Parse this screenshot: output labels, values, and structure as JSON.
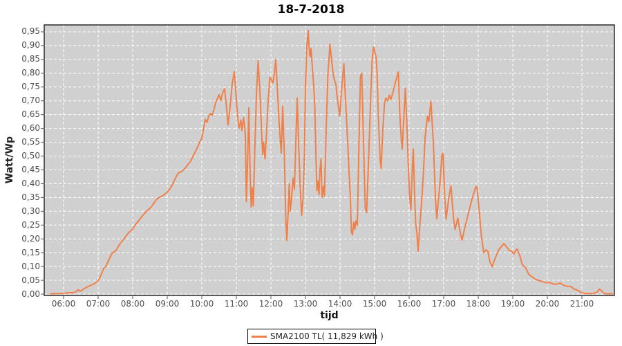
{
  "page": {
    "background": "#ffffff"
  },
  "chart_data": {
    "type": "line",
    "title": "18-7-2018",
    "xlabel": "tijd",
    "ylabel": "Watt/Wp",
    "x_unit": "time-of-day-hours",
    "xlim": [
      5.44,
      21.94
    ],
    "ylim": [
      -0.005,
      0.975
    ],
    "grid": true,
    "grid_style": "dashed-white",
    "legend_position": "bottom-center",
    "plot_background": "#d0d0d0",
    "grid_color": "#ffffff",
    "plot_border_color": "#2a2a2a",
    "tick_color": "#555555",
    "tick_label_color": "#4d4d4d",
    "x_tick_values": [
      6,
      7,
      8,
      9,
      10,
      11,
      12,
      13,
      14,
      15,
      16,
      17,
      18,
      19,
      20,
      21
    ],
    "x_tick_labels": [
      "06:00",
      "07:00",
      "08:00",
      "09:00",
      "10:00",
      "11:00",
      "12:00",
      "13:00",
      "14:00",
      "15:00",
      "16:00",
      "17:00",
      "18:00",
      "19:00",
      "20:00",
      "21:00"
    ],
    "y_tick_values": [
      0,
      0.05,
      0.1,
      0.15,
      0.2,
      0.25,
      0.3,
      0.35,
      0.4,
      0.45,
      0.5,
      0.55,
      0.6,
      0.65,
      0.7,
      0.75,
      0.8,
      0.85,
      0.9,
      0.95
    ],
    "y_tick_labels": [
      "0,00",
      "0,05",
      "0,10",
      "0,15",
      "0,20",
      "0,25",
      "0,30",
      "0,35",
      "0,40",
      "0,45",
      "0,50",
      "0,55",
      "0,60",
      "0,65",
      "0,70",
      "0,75",
      "0,80",
      "0,85",
      "0,90",
      "0,95"
    ],
    "series": [
      {
        "name": "SMA2100 TL( 11,829 kWh )",
        "color": "#f0804a",
        "points": [
          [
            5.62,
            0.001
          ],
          [
            5.75,
            0.002
          ],
          [
            5.9,
            0.002
          ],
          [
            6.0,
            0.003
          ],
          [
            6.1,
            0.004
          ],
          [
            6.2,
            0.005
          ],
          [
            6.28,
            0.005
          ],
          [
            6.35,
            0.008
          ],
          [
            6.42,
            0.016
          ],
          [
            6.47,
            0.01
          ],
          [
            6.53,
            0.014
          ],
          [
            6.6,
            0.02
          ],
          [
            6.67,
            0.025
          ],
          [
            6.75,
            0.03
          ],
          [
            6.83,
            0.034
          ],
          [
            6.92,
            0.04
          ],
          [
            7.0,
            0.048
          ],
          [
            7.05,
            0.06
          ],
          [
            7.1,
            0.075
          ],
          [
            7.17,
            0.095
          ],
          [
            7.22,
            0.1
          ],
          [
            7.28,
            0.115
          ],
          [
            7.33,
            0.13
          ],
          [
            7.4,
            0.148
          ],
          [
            7.45,
            0.152
          ],
          [
            7.5,
            0.156
          ],
          [
            7.55,
            0.165
          ],
          [
            7.62,
            0.18
          ],
          [
            7.68,
            0.19
          ],
          [
            7.75,
            0.2
          ],
          [
            7.82,
            0.213
          ],
          [
            7.88,
            0.222
          ],
          [
            7.95,
            0.23
          ],
          [
            8.0,
            0.235
          ],
          [
            8.07,
            0.25
          ],
          [
            8.13,
            0.26
          ],
          [
            8.2,
            0.27
          ],
          [
            8.27,
            0.282
          ],
          [
            8.33,
            0.29
          ],
          [
            8.4,
            0.3
          ],
          [
            8.47,
            0.308
          ],
          [
            8.53,
            0.315
          ],
          [
            8.6,
            0.327
          ],
          [
            8.67,
            0.34
          ],
          [
            8.73,
            0.348
          ],
          [
            8.8,
            0.352
          ],
          [
            8.87,
            0.357
          ],
          [
            8.93,
            0.362
          ],
          [
            9.0,
            0.37
          ],
          [
            9.07,
            0.38
          ],
          [
            9.13,
            0.392
          ],
          [
            9.2,
            0.41
          ],
          [
            9.27,
            0.428
          ],
          [
            9.33,
            0.44
          ],
          [
            9.4,
            0.443
          ],
          [
            9.47,
            0.45
          ],
          [
            9.53,
            0.458
          ],
          [
            9.6,
            0.47
          ],
          [
            9.67,
            0.48
          ],
          [
            9.73,
            0.495
          ],
          [
            9.8,
            0.513
          ],
          [
            9.87,
            0.53
          ],
          [
            9.93,
            0.548
          ],
          [
            10.0,
            0.565
          ],
          [
            10.05,
            0.598
          ],
          [
            10.1,
            0.633
          ],
          [
            10.15,
            0.622
          ],
          [
            10.2,
            0.645
          ],
          [
            10.25,
            0.654
          ],
          [
            10.3,
            0.648
          ],
          [
            10.35,
            0.668
          ],
          [
            10.4,
            0.693
          ],
          [
            10.45,
            0.708
          ],
          [
            10.5,
            0.722
          ],
          [
            10.55,
            0.701
          ],
          [
            10.6,
            0.728
          ],
          [
            10.66,
            0.744
          ],
          [
            10.71,
            0.683
          ],
          [
            10.76,
            0.612
          ],
          [
            10.82,
            0.68
          ],
          [
            10.88,
            0.762
          ],
          [
            10.94,
            0.805
          ],
          [
            11.0,
            0.705
          ],
          [
            11.05,
            0.625
          ],
          [
            11.08,
            0.6
          ],
          [
            11.13,
            0.63
          ],
          [
            11.16,
            0.592
          ],
          [
            11.21,
            0.64
          ],
          [
            11.26,
            0.578
          ],
          [
            11.29,
            0.335
          ],
          [
            11.33,
            0.5
          ],
          [
            11.36,
            0.675
          ],
          [
            11.4,
            0.43
          ],
          [
            11.43,
            0.315
          ],
          [
            11.46,
            0.385
          ],
          [
            11.49,
            0.32
          ],
          [
            11.54,
            0.55
          ],
          [
            11.58,
            0.72
          ],
          [
            11.63,
            0.845
          ],
          [
            11.68,
            0.74
          ],
          [
            11.72,
            0.62
          ],
          [
            11.76,
            0.505
          ],
          [
            11.79,
            0.55
          ],
          [
            11.83,
            0.49
          ],
          [
            11.88,
            0.6
          ],
          [
            11.92,
            0.7
          ],
          [
            11.97,
            0.785
          ],
          [
            12.02,
            0.775
          ],
          [
            12.06,
            0.765
          ],
          [
            12.1,
            0.8
          ],
          [
            12.14,
            0.85
          ],
          [
            12.18,
            0.76
          ],
          [
            12.23,
            0.635
          ],
          [
            12.27,
            0.56
          ],
          [
            12.3,
            0.51
          ],
          [
            12.34,
            0.68
          ],
          [
            12.39,
            0.5
          ],
          [
            12.43,
            0.27
          ],
          [
            12.46,
            0.195
          ],
          [
            12.5,
            0.3
          ],
          [
            12.53,
            0.4
          ],
          [
            12.56,
            0.3
          ],
          [
            12.6,
            0.35
          ],
          [
            12.64,
            0.42
          ],
          [
            12.68,
            0.38
          ],
          [
            12.72,
            0.55
          ],
          [
            12.76,
            0.71
          ],
          [
            12.8,
            0.55
          ],
          [
            12.85,
            0.38
          ],
          [
            12.89,
            0.285
          ],
          [
            12.93,
            0.35
          ],
          [
            12.97,
            0.5
          ],
          [
            13.0,
            0.75
          ],
          [
            13.04,
            0.9
          ],
          [
            13.08,
            0.955
          ],
          [
            13.1,
            0.9
          ],
          [
            13.13,
            0.86
          ],
          [
            13.16,
            0.89
          ],
          [
            13.2,
            0.82
          ],
          [
            13.24,
            0.75
          ],
          [
            13.27,
            0.68
          ],
          [
            13.3,
            0.52
          ],
          [
            13.33,
            0.375
          ],
          [
            13.36,
            0.41
          ],
          [
            13.39,
            0.36
          ],
          [
            13.42,
            0.45
          ],
          [
            13.45,
            0.49
          ],
          [
            13.48,
            0.35
          ],
          [
            13.52,
            0.39
          ],
          [
            13.55,
            0.355
          ],
          [
            13.6,
            0.6
          ],
          [
            13.65,
            0.8
          ],
          [
            13.71,
            0.905
          ],
          [
            13.75,
            0.855
          ],
          [
            13.78,
            0.82
          ],
          [
            13.81,
            0.79
          ],
          [
            13.84,
            0.775
          ],
          [
            13.88,
            0.76
          ],
          [
            13.93,
            0.7
          ],
          [
            13.99,
            0.645
          ],
          [
            14.04,
            0.73
          ],
          [
            14.08,
            0.79
          ],
          [
            14.11,
            0.835
          ],
          [
            14.16,
            0.7
          ],
          [
            14.21,
            0.58
          ],
          [
            14.26,
            0.45
          ],
          [
            14.3,
            0.345
          ],
          [
            14.33,
            0.225
          ],
          [
            14.36,
            0.215
          ],
          [
            14.4,
            0.26
          ],
          [
            14.43,
            0.235
          ],
          [
            14.46,
            0.265
          ],
          [
            14.5,
            0.25
          ],
          [
            14.55,
            0.55
          ],
          [
            14.59,
            0.79
          ],
          [
            14.63,
            0.8
          ],
          [
            14.68,
            0.55
          ],
          [
            14.73,
            0.31
          ],
          [
            14.77,
            0.295
          ],
          [
            14.83,
            0.5
          ],
          [
            14.89,
            0.72
          ],
          [
            14.93,
            0.85
          ],
          [
            14.97,
            0.895
          ],
          [
            15.0,
            0.88
          ],
          [
            15.04,
            0.862
          ],
          [
            15.07,
            0.81
          ],
          [
            15.11,
            0.64
          ],
          [
            15.16,
            0.49
          ],
          [
            15.19,
            0.455
          ],
          [
            15.24,
            0.6
          ],
          [
            15.29,
            0.695
          ],
          [
            15.33,
            0.71
          ],
          [
            15.38,
            0.7
          ],
          [
            15.43,
            0.72
          ],
          [
            15.47,
            0.705
          ],
          [
            15.53,
            0.73
          ],
          [
            15.61,
            0.77
          ],
          [
            15.69,
            0.805
          ],
          [
            15.73,
            0.65
          ],
          [
            15.77,
            0.565
          ],
          [
            15.8,
            0.525
          ],
          [
            15.85,
            0.65
          ],
          [
            15.89,
            0.745
          ],
          [
            15.94,
            0.6
          ],
          [
            15.98,
            0.45
          ],
          [
            16.02,
            0.345
          ],
          [
            16.05,
            0.305
          ],
          [
            16.09,
            0.45
          ],
          [
            16.12,
            0.525
          ],
          [
            16.16,
            0.35
          ],
          [
            16.19,
            0.255
          ],
          [
            16.23,
            0.215
          ],
          [
            16.26,
            0.155
          ],
          [
            16.31,
            0.25
          ],
          [
            16.36,
            0.33
          ],
          [
            16.41,
            0.43
          ],
          [
            16.46,
            0.565
          ],
          [
            16.53,
            0.645
          ],
          [
            16.57,
            0.625
          ],
          [
            16.63,
            0.698
          ],
          [
            16.7,
            0.55
          ],
          [
            16.76,
            0.35
          ],
          [
            16.8,
            0.273
          ],
          [
            16.89,
            0.4
          ],
          [
            16.95,
            0.505
          ],
          [
            16.98,
            0.51
          ],
          [
            17.03,
            0.35
          ],
          [
            17.07,
            0.272
          ],
          [
            17.15,
            0.35
          ],
          [
            17.21,
            0.392
          ],
          [
            17.28,
            0.28
          ],
          [
            17.33,
            0.234
          ],
          [
            17.41,
            0.275
          ],
          [
            17.48,
            0.22
          ],
          [
            17.53,
            0.196
          ],
          [
            17.63,
            0.25
          ],
          [
            17.73,
            0.3
          ],
          [
            17.83,
            0.35
          ],
          [
            17.93,
            0.388
          ],
          [
            17.96,
            0.39
          ],
          [
            18.03,
            0.3
          ],
          [
            18.09,
            0.21
          ],
          [
            18.16,
            0.15
          ],
          [
            18.23,
            0.16
          ],
          [
            18.28,
            0.155
          ],
          [
            18.33,
            0.12
          ],
          [
            18.4,
            0.099
          ],
          [
            18.49,
            0.13
          ],
          [
            18.59,
            0.16
          ],
          [
            18.69,
            0.175
          ],
          [
            18.74,
            0.183
          ],
          [
            18.83,
            0.17
          ],
          [
            18.9,
            0.158
          ],
          [
            18.97,
            0.155
          ],
          [
            19.03,
            0.145
          ],
          [
            19.09,
            0.16
          ],
          [
            19.13,
            0.163
          ],
          [
            19.2,
            0.14
          ],
          [
            19.27,
            0.108
          ],
          [
            19.37,
            0.095
          ],
          [
            19.47,
            0.07
          ],
          [
            19.57,
            0.062
          ],
          [
            19.67,
            0.053
          ],
          [
            19.77,
            0.049
          ],
          [
            19.87,
            0.045
          ],
          [
            19.97,
            0.041
          ],
          [
            20.07,
            0.042
          ],
          [
            20.17,
            0.036
          ],
          [
            20.27,
            0.036
          ],
          [
            20.37,
            0.04
          ],
          [
            20.47,
            0.032
          ],
          [
            20.57,
            0.028
          ],
          [
            20.67,
            0.028
          ],
          [
            20.77,
            0.019
          ],
          [
            20.87,
            0.014
          ],
          [
            20.97,
            0.007
          ],
          [
            21.05,
            0.003
          ],
          [
            21.15,
            0.002
          ],
          [
            21.25,
            0.002
          ],
          [
            21.35,
            0.003
          ],
          [
            21.45,
            0.008
          ],
          [
            21.5,
            0.018
          ],
          [
            21.55,
            0.014
          ],
          [
            21.62,
            0.004
          ],
          [
            21.7,
            0.001
          ],
          [
            21.8,
            0.001
          ],
          [
            21.88,
            0.001
          ]
        ]
      }
    ],
    "legend": {
      "label": "SMA2100 TL( 11,829 kWh )",
      "swatch_color": "#f0804a"
    }
  }
}
